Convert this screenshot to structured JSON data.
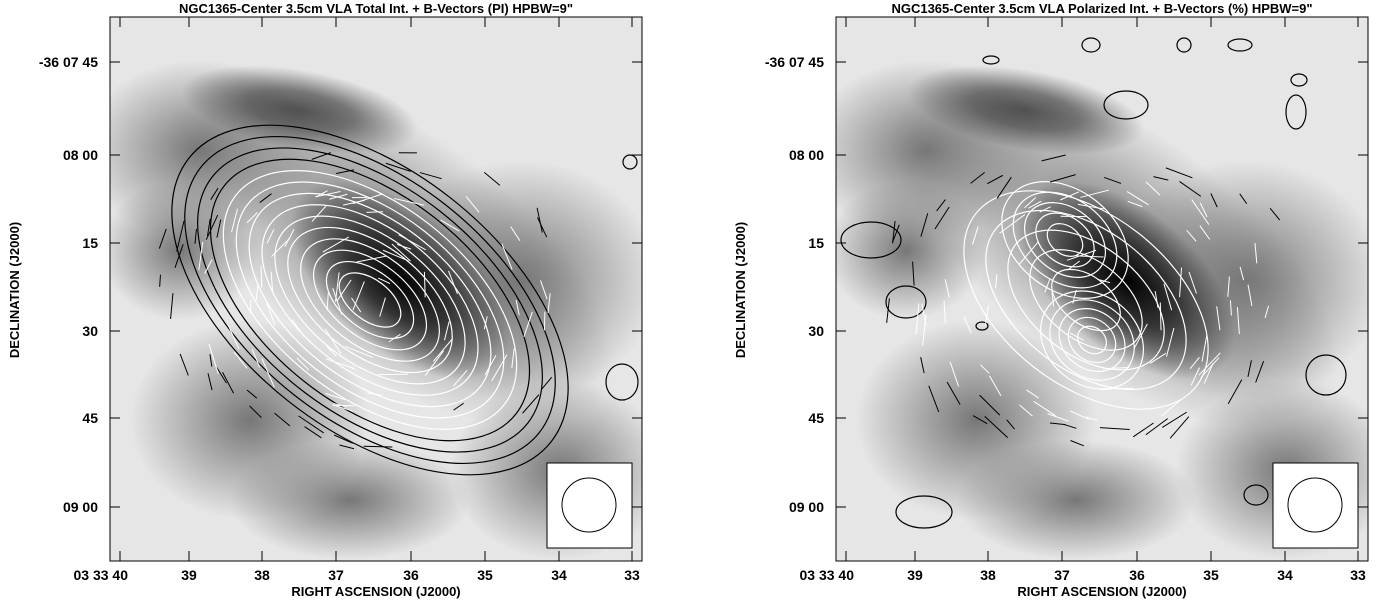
{
  "panels": [
    {
      "title": "NGC1365-Center  3.5cm  VLA  Total Int. + B-Vectors (PI)  HPBW=9\"",
      "x_axis_label": "RIGHT ASCENSION (J2000)",
      "y_axis_label": "DECLINATION (J2000)",
      "x_tick_labels": [
        "03 33 40",
        "39",
        "38",
        "37",
        "36",
        "35",
        "34",
        "33"
      ],
      "y_tick_labels": [
        "-36 07 45",
        "08 00",
        "15",
        "30",
        "45",
        "09 00"
      ]
    },
    {
      "title": "NGC1365-Center  3.5cm  VLA  Polarized Int. + B-Vectors (%)  HPBW=9\"",
      "x_axis_label": "RIGHT ASCENSION (J2000)",
      "y_axis_label": "DECLINATION (J2000)",
      "x_tick_labels": [
        "03 33 40",
        "39",
        "38",
        "37",
        "36",
        "35",
        "34",
        "33"
      ],
      "y_tick_labels": [
        "-36 07 45",
        "08 00",
        "15",
        "30",
        "45",
        "09 00"
      ]
    }
  ]
}
